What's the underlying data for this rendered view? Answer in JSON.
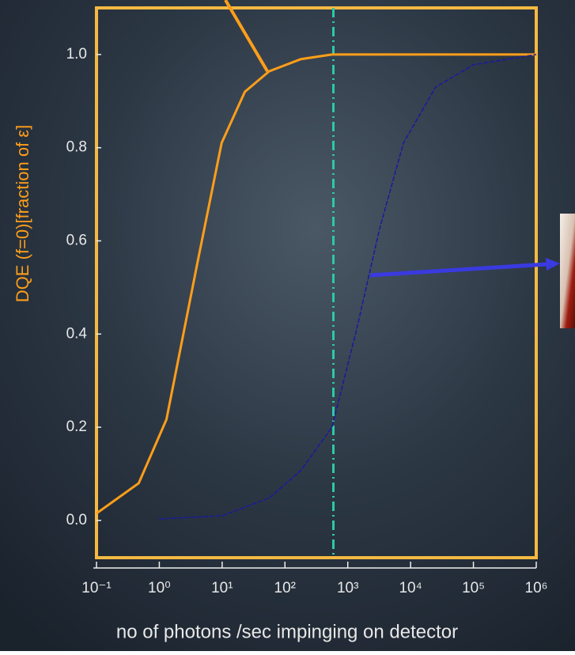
{
  "chart_data": {
    "type": "line",
    "xlabel": "no of photons /sec impinging on detector",
    "ylabel": "DQE  (f=0)[fraction of ε]",
    "log_x": true,
    "xlim": [
      0.1,
      1000000
    ],
    "xticks": [
      {
        "value": 0.1,
        "label": "10⁻¹"
      },
      {
        "value": 1,
        "label": "10⁰"
      },
      {
        "value": 10,
        "label": "10¹"
      },
      {
        "value": 100,
        "label": "10²"
      },
      {
        "value": 1000,
        "label": "10³"
      },
      {
        "value": 10000,
        "label": "10⁴"
      },
      {
        "value": 100000,
        "label": "10⁵"
      },
      {
        "value": 1000000,
        "label": "10⁶"
      }
    ],
    "ylim": [
      -0.08,
      1.1
    ],
    "yticks": [
      {
        "value": 0,
        "label": "0.0"
      },
      0.2,
      0.4,
      0.6,
      0.8,
      {
        "value": 1,
        "label": "1.0"
      }
    ],
    "vline": 590,
    "vline_color": "#2ec9a6",
    "series": [
      {
        "color": "#ff9e1a",
        "x": [
          0.1,
          0.47,
          1.3,
          4.1,
          9.8,
          23,
          56,
          178,
          560,
          1000000
        ],
        "values": [
          0.015,
          0.08,
          0.217,
          0.557,
          0.81,
          0.92,
          0.964,
          0.99,
          1.0,
          1.0
        ]
      },
      {
        "color": "#1a1a9e",
        "x": [
          1,
          10,
          56,
          178,
          560,
          1350,
          3200,
          7700,
          25000,
          100000,
          1000000
        ],
        "values": [
          0.003,
          0.01,
          0.048,
          0.107,
          0.2,
          0.404,
          0.625,
          0.81,
          0.93,
          0.978,
          1.0
        ]
      }
    ]
  }
}
